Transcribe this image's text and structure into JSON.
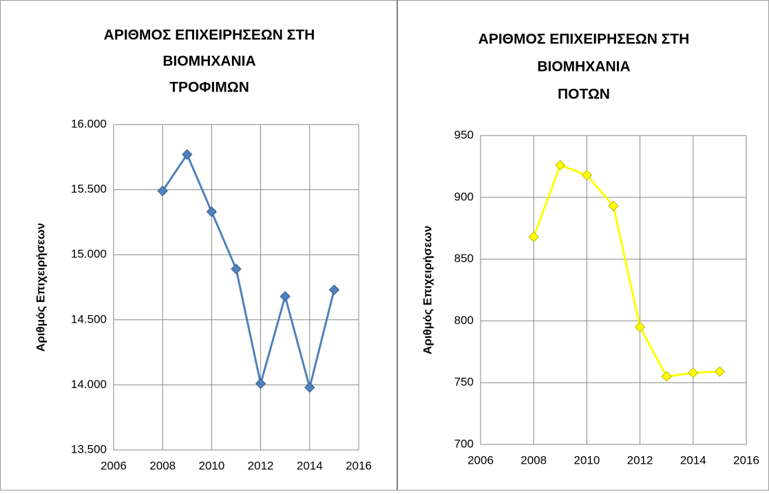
{
  "chart_data": [
    {
      "type": "line",
      "title": [
        "ΑΡΙΘΜΟΣ ΕΠΙΧΕΙΡΗΣΕΩΝ ΣΤΗ",
        "ΒΙΟΜΗΧΑΝΙΑ",
        "ΤΡΟΦΙΜΩΝ"
      ],
      "y_label": "Αριθμός Επιχειρήσεων",
      "x": [
        2008,
        2009,
        2010,
        2011,
        2012,
        2013,
        2014,
        2015
      ],
      "series": [
        {
          "name": "ΤΡΟΦΙΜΩΝ",
          "color": "#4f81bd",
          "values": [
            15490,
            15770,
            15330,
            14890,
            14010,
            14680,
            13980,
            14730
          ]
        }
      ],
      "xlim": [
        2006,
        2016
      ],
      "xticks": [
        2006,
        2008,
        2010,
        2012,
        2014,
        2016
      ],
      "ylim": [
        13500,
        16000
      ],
      "yticks": [
        {
          "value": 13500,
          "label": "13.500"
        },
        {
          "value": 14000,
          "label": "14.000"
        },
        {
          "value": 14500,
          "label": "14.500"
        },
        {
          "value": 15000,
          "label": "15.000"
        },
        {
          "value": 15500,
          "label": "15.500"
        },
        {
          "value": 16000,
          "label": "16.000"
        }
      ],
      "grid": true
    },
    {
      "type": "line",
      "title": [
        "ΑΡΙΘΜΟΣ ΕΠΙΧΕΙΡΗΣΕΩΝ ΣΤΗ",
        "ΒΙΟΜΗΧΑΝΙΑ",
        "ΠΟΤΩΝ"
      ],
      "y_label": "Αριθμός Επιχειρήσεων",
      "x": [
        2008,
        2009,
        2010,
        2011,
        2012,
        2013,
        2014,
        2015
      ],
      "series": [
        {
          "name": "ΠΟΤΩΝ",
          "color": "#ffff00",
          "values": [
            868,
            926,
            918,
            893,
            795,
            755,
            758,
            759
          ]
        }
      ],
      "xlim": [
        2006,
        2016
      ],
      "xticks": [
        2006,
        2008,
        2010,
        2012,
        2014,
        2016
      ],
      "ylim": [
        700,
        950
      ],
      "yticks": [
        700,
        750,
        800,
        850,
        900,
        950
      ],
      "grid": true
    }
  ]
}
